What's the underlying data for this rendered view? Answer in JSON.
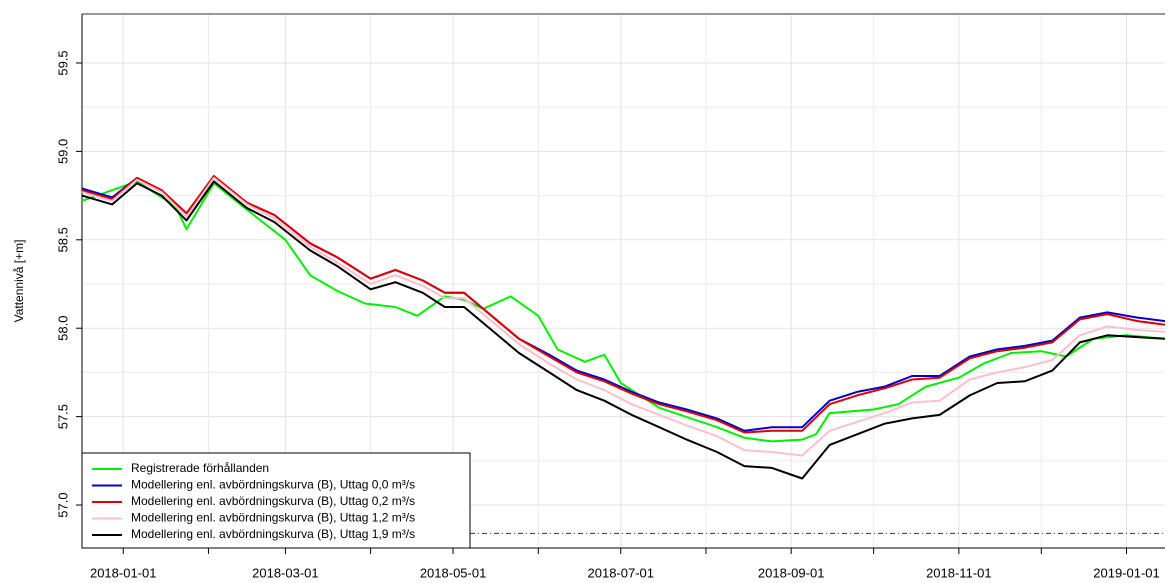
{
  "chart_data": {
    "type": "line",
    "ylabel": "Vattennivå [+m]",
    "xlim": [
      "2017-12-17",
      "2019-01-15"
    ],
    "ylim": [
      56.757,
      59.777
    ],
    "xticks": [
      "2018-01-01",
      "2018-03-01",
      "2018-05-01",
      "2018-07-01",
      "2018-09-01",
      "2018-11-01",
      "2019-01-01"
    ],
    "xminor_ticks": [
      "2018-02-01",
      "2018-04-01",
      "2018-06-01",
      "2018-08-01",
      "2018-10-01",
      "2018-12-01"
    ],
    "yticks": [
      {
        "value": 57,
        "label": "57.0"
      },
      57.5,
      {
        "value": 58,
        "label": "58.0"
      },
      58.5,
      {
        "value": 59,
        "label": "59.0"
      },
      59.5
    ],
    "yminor_grid": [
      57.25,
      57.75,
      58.25,
      58.75,
      59.25
    ],
    "grid": true,
    "hlines": [
      59.777,
      56.84
    ],
    "hline_styles": [
      "solid",
      "dashdot"
    ],
    "legend_position": "bottom-left",
    "x": [
      "2017-12-17",
      "2017-12-28",
      "2018-01-06",
      "2018-01-15",
      "2018-01-24",
      "2018-02-03",
      "2018-02-15",
      "2018-02-25",
      "2018-03-10",
      "2018-03-20",
      "2018-04-01",
      "2018-04-10",
      "2018-04-20",
      "2018-04-28",
      "2018-05-05",
      "2018-05-15",
      "2018-05-25",
      "2018-06-05",
      "2018-06-15",
      "2018-06-25",
      "2018-07-05",
      "2018-07-15",
      "2018-07-25",
      "2018-08-05",
      "2018-08-15",
      "2018-08-25",
      "2018-09-05",
      "2018-09-15",
      "2018-09-25",
      "2018-10-05",
      "2018-10-15",
      "2018-10-25",
      "2018-11-05",
      "2018-11-15",
      "2018-11-25",
      "2018-12-05",
      "2018-12-15",
      "2018-12-25",
      "2019-01-05",
      "2019-01-15"
    ],
    "series": [
      {
        "name": "Registrerade förhållanden",
        "color": "#00ee00",
        "x": [
          "2017-12-17",
          "2018-01-06",
          "2018-01-20",
          "2018-01-24",
          "2018-02-03",
          "2018-02-15",
          "2018-03-01",
          "2018-03-10",
          "2018-03-20",
          "2018-03-30",
          "2018-04-10",
          "2018-04-18",
          "2018-04-28",
          "2018-05-05",
          "2018-05-12",
          "2018-05-22",
          "2018-06-01",
          "2018-06-08",
          "2018-06-18",
          "2018-06-25",
          "2018-07-01",
          "2018-07-15",
          "2018-08-05",
          "2018-08-15",
          "2018-08-25",
          "2018-09-05",
          "2018-09-10",
          "2018-09-15",
          "2018-10-01",
          "2018-10-10",
          "2018-10-20",
          "2018-11-01",
          "2018-11-10",
          "2018-11-20",
          "2018-12-01",
          "2018-12-10",
          "2018-12-20",
          "2019-01-01",
          "2019-01-15"
        ],
        "values": [
          58.72,
          58.83,
          58.69,
          58.56,
          58.82,
          58.67,
          58.5,
          58.3,
          58.21,
          58.14,
          58.12,
          58.07,
          58.18,
          58.16,
          58.11,
          58.18,
          58.07,
          57.88,
          57.81,
          57.85,
          57.69,
          57.55,
          57.44,
          57.38,
          57.36,
          57.37,
          57.4,
          57.52,
          57.54,
          57.57,
          57.67,
          57.72,
          57.8,
          57.86,
          57.87,
          57.84,
          57.94,
          57.96,
          57.94
        ]
      },
      {
        "name": "Modellering enl. avbördningskurva (B), Uttag 0,0 m³/s",
        "color": "#0000cc",
        "values": [
          58.79,
          58.74,
          58.85,
          58.78,
          58.65,
          58.86,
          58.71,
          58.64,
          58.48,
          58.4,
          58.28,
          58.33,
          58.27,
          58.2,
          58.2,
          58.07,
          57.94,
          57.85,
          57.76,
          57.71,
          57.64,
          57.58,
          57.54,
          57.49,
          57.42,
          57.44,
          57.44,
          57.59,
          57.64,
          57.67,
          57.73,
          57.73,
          57.84,
          57.88,
          57.9,
          57.93,
          58.06,
          58.09,
          58.06,
          58.04
        ]
      },
      {
        "name": "Modellering enl. avbördningskurva (B), Uttag 0,2 m³/s",
        "color": "#dd0000",
        "values": [
          58.78,
          58.73,
          58.85,
          58.78,
          58.65,
          58.86,
          58.71,
          58.64,
          58.48,
          58.4,
          58.28,
          58.33,
          58.27,
          58.2,
          58.2,
          58.07,
          57.94,
          57.84,
          57.75,
          57.7,
          57.63,
          57.57,
          57.53,
          57.48,
          57.41,
          57.42,
          57.42,
          57.57,
          57.62,
          57.66,
          57.71,
          57.72,
          57.83,
          57.87,
          57.89,
          57.92,
          58.05,
          58.08,
          58.04,
          58.02
        ]
      },
      {
        "name": "Modellering enl. avbördningskurva (B), Uttag 1,2 m³/s",
        "color": "#ffc0cb",
        "values": [
          58.77,
          58.72,
          58.84,
          58.77,
          58.63,
          58.85,
          58.7,
          58.62,
          58.46,
          58.37,
          58.25,
          58.3,
          58.24,
          58.17,
          58.17,
          58.04,
          57.91,
          57.8,
          57.71,
          57.65,
          57.57,
          57.51,
          57.45,
          57.39,
          57.31,
          57.3,
          57.28,
          57.42,
          57.47,
          57.52,
          57.58,
          57.59,
          57.71,
          57.75,
          57.78,
          57.82,
          57.96,
          58.01,
          57.99,
          57.98
        ]
      },
      {
        "name": "Modellering enl. avbördningskurva (B), Uttag 1,9 m³/s",
        "color": "#000000",
        "values": [
          58.75,
          58.7,
          58.82,
          58.75,
          58.61,
          58.83,
          58.68,
          58.6,
          58.44,
          58.35,
          58.22,
          58.26,
          58.2,
          58.12,
          58.12,
          57.99,
          57.86,
          57.75,
          57.65,
          57.59,
          57.51,
          57.44,
          57.37,
          57.3,
          57.22,
          57.21,
          57.15,
          57.34,
          57.4,
          57.46,
          57.49,
          57.51,
          57.62,
          57.69,
          57.7,
          57.76,
          57.92,
          57.96,
          57.95,
          57.94
        ]
      }
    ]
  }
}
